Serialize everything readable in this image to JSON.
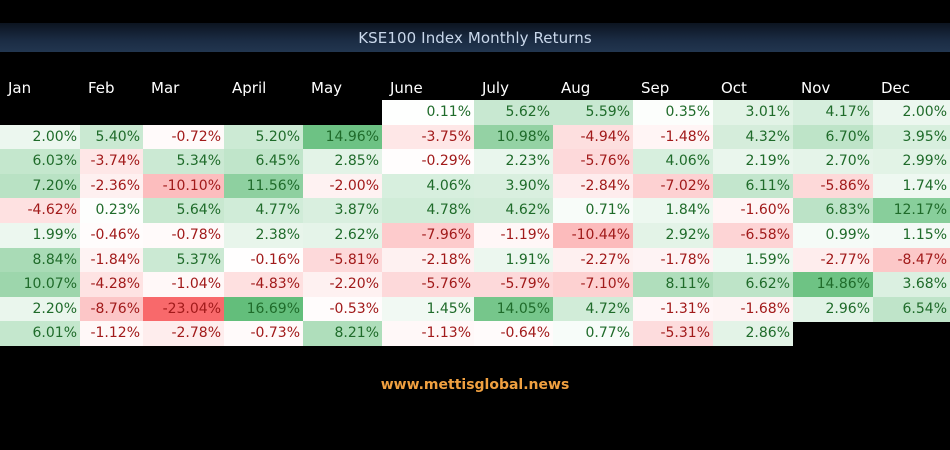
{
  "chart_data": {
    "type": "table",
    "title": "KSE100 Index Monthly Returns",
    "columns": [
      "Jan",
      "Feb",
      "Mar",
      "April",
      "May",
      "June",
      "July",
      "Aug",
      "Sep",
      "Oct",
      "Nov",
      "Dec"
    ],
    "rows": [
      [
        null,
        null,
        null,
        null,
        null,
        "0.11%",
        "5.62%",
        "5.59%",
        "0.35%",
        "3.01%",
        "4.17%",
        "2.00%"
      ],
      [
        "2.00%",
        "5.40%",
        "-0.72%",
        "5.20%",
        "14.96%",
        "-3.75%",
        "10.98%",
        "-4.94%",
        "-1.48%",
        "4.32%",
        "6.70%",
        "3.95%"
      ],
      [
        "6.03%",
        "-3.74%",
        "5.34%",
        "6.45%",
        "2.85%",
        "-0.29%",
        "2.23%",
        "-5.76%",
        "4.06%",
        "2.19%",
        "2.70%",
        "2.99%"
      ],
      [
        "7.20%",
        "-2.36%",
        "-10.10%",
        "11.56%",
        "-2.00%",
        "4.06%",
        "3.90%",
        "-2.84%",
        "-7.02%",
        "6.11%",
        "-5.86%",
        "1.74%"
      ],
      [
        "-4.62%",
        "0.23%",
        "5.64%",
        "4.77%",
        "3.87%",
        "4.78%",
        "4.62%",
        "0.71%",
        "1.84%",
        "-1.60%",
        "6.83%",
        "12.17%"
      ],
      [
        "1.99%",
        "-0.46%",
        "-0.78%",
        "2.38%",
        "2.62%",
        "-7.96%",
        "-1.19%",
        "-10.44%",
        "2.92%",
        "-6.58%",
        "0.99%",
        "1.15%"
      ],
      [
        "8.84%",
        "-1.84%",
        "5.37%",
        "-0.16%",
        "-5.81%",
        "-2.18%",
        "1.91%",
        "-2.27%",
        "-1.78%",
        "1.59%",
        "-2.77%",
        "-8.47%"
      ],
      [
        "10.07%",
        "-4.28%",
        "-1.04%",
        "-4.83%",
        "-2.20%",
        "-5.76%",
        "-5.79%",
        "-7.10%",
        "8.11%",
        "6.62%",
        "14.86%",
        "3.68%"
      ],
      [
        "2.20%",
        "-8.76%",
        "-23.04%",
        "16.69%",
        "-0.53%",
        "1.45%",
        "14.05%",
        "4.72%",
        "-1.31%",
        "-1.68%",
        "2.96%",
        "6.54%"
      ],
      [
        "6.01%",
        "-1.12%",
        "-2.78%",
        "-0.73%",
        "8.21%",
        "-1.13%",
        "-0.64%",
        "0.77%",
        "-5.31%",
        "2.86%",
        null,
        null
      ]
    ]
  },
  "footer": {
    "source": "www.mettisglobal.news"
  },
  "colors": {
    "positive_text": "#1f6b2a",
    "negative_text": "#a11a1a",
    "background": "#000000"
  }
}
